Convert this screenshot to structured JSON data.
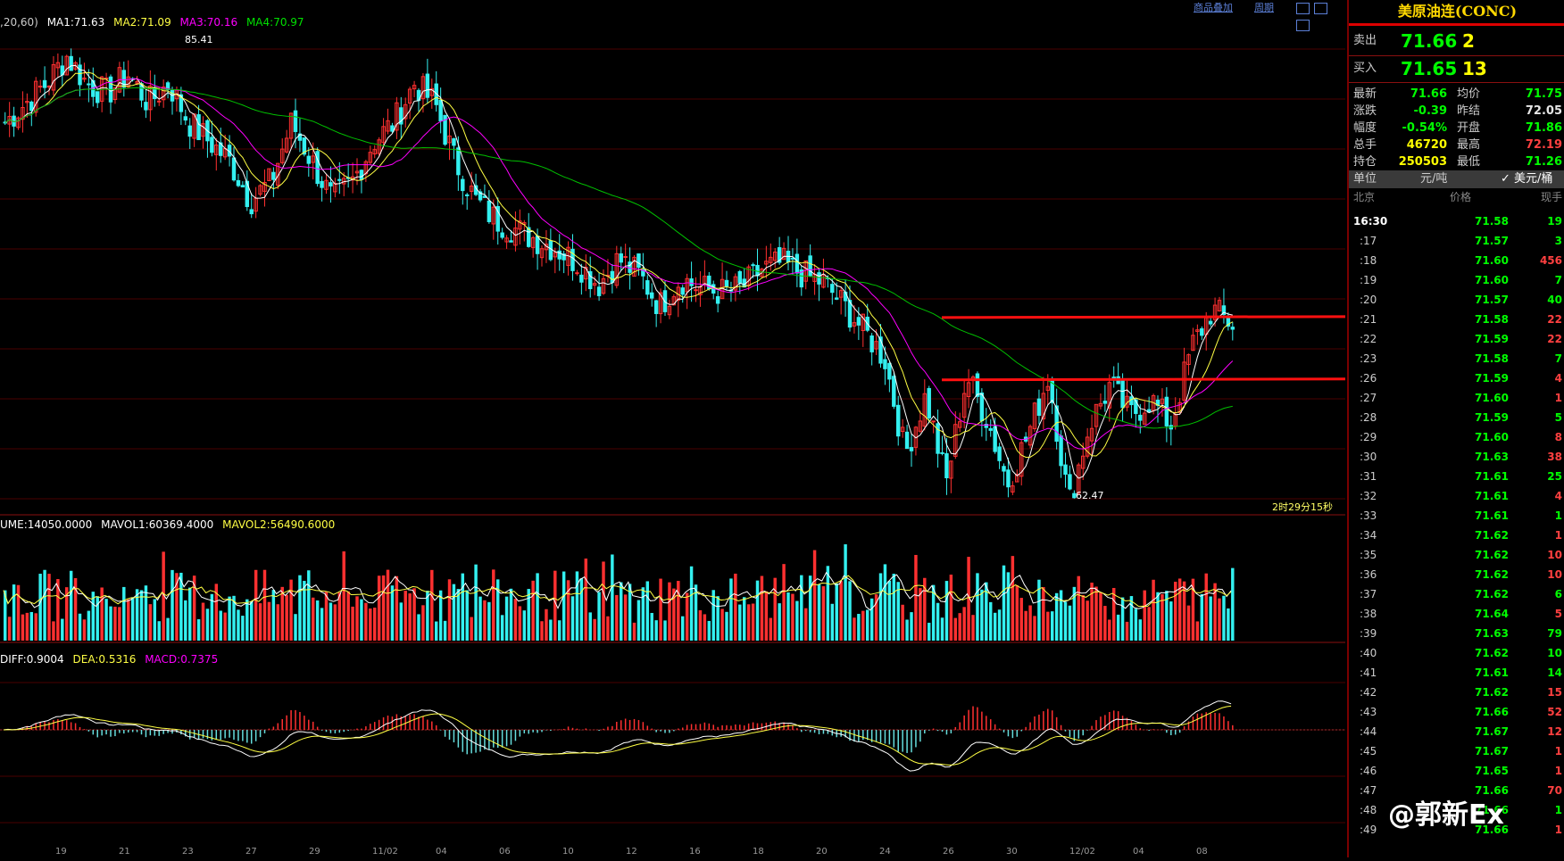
{
  "toolbar": {
    "overlay_label": "商品叠加",
    "period_label": "周期"
  },
  "main_legend": {
    "prefix": ",20,60)",
    "ma1": "MA1:71.63",
    "ma2": "MA2:71.09",
    "ma3": "MA3:70.16",
    "ma4": "MA4:70.97"
  },
  "volume_legend": {
    "volume": "UME:14050.0000",
    "mavol1": "MAVOL1:60369.4000",
    "mavol2": "MAVOL2:56490.6000"
  },
  "macd_legend": {
    "diff": "DIFF:0.9004",
    "dea": "DEA:0.5316",
    "macd": "MACD:0.7375"
  },
  "annotations": {
    "high_label": "85.41",
    "low_label": "62.47",
    "countdown": "2时29分15秒"
  },
  "x_axis_labels": [
    "19",
    "21",
    "23",
    "27",
    "29",
    "11/02",
    "04",
    "06",
    "10",
    "12",
    "16",
    "18",
    "20",
    "24",
    "26",
    "30",
    "12/02",
    "04",
    "08"
  ],
  "quote": {
    "title": "美原油连(CONC)",
    "sell_label": "卖出",
    "sell_price": "71.66",
    "sell_qty": "2",
    "buy_label": "买入",
    "buy_price": "71.65",
    "buy_qty": "13",
    "stats": [
      {
        "l1": "最新",
        "v1": "71.66",
        "c1": "green",
        "l2": "均价",
        "v2": "71.75",
        "c2": "green"
      },
      {
        "l1": "涨跌",
        "v1": "-0.39",
        "c1": "green",
        "l2": "昨结",
        "v2": "72.05",
        "c2": "white"
      },
      {
        "l1": "幅度",
        "v1": "-0.54%",
        "c1": "green",
        "l2": "开盘",
        "v2": "71.86",
        "c2": "green"
      },
      {
        "l1": "总手",
        "v1": "46720",
        "c1": "yellow",
        "l2": "最高",
        "v2": "72.19",
        "c2": "red"
      },
      {
        "l1": "持仓",
        "v1": "250503",
        "c1": "yellow",
        "l2": "最低",
        "v2": "71.26",
        "c2": "green"
      }
    ],
    "unit_label": "单位",
    "unit_a": "元/吨",
    "unit_b": "✓ 美元/桶",
    "col_time": "北京",
    "col_price": "价格",
    "col_qty": "现手"
  },
  "ticks": [
    {
      "t": "16:30",
      "p": "71.58",
      "v": "19",
      "c": "green"
    },
    {
      "t": ":17",
      "p": "71.57",
      "v": "3",
      "c": "green"
    },
    {
      "t": ":18",
      "p": "71.60",
      "v": "456",
      "c": "red"
    },
    {
      "t": ":19",
      "p": "71.60",
      "v": "7",
      "c": "green"
    },
    {
      "t": ":20",
      "p": "71.57",
      "v": "40",
      "c": "green"
    },
    {
      "t": ":21",
      "p": "71.58",
      "v": "22",
      "c": "red"
    },
    {
      "t": ":22",
      "p": "71.59",
      "v": "22",
      "c": "red"
    },
    {
      "t": ":23",
      "p": "71.58",
      "v": "7",
      "c": "green"
    },
    {
      "t": ":26",
      "p": "71.59",
      "v": "4",
      "c": "red"
    },
    {
      "t": ":27",
      "p": "71.60",
      "v": "1",
      "c": "red"
    },
    {
      "t": ":28",
      "p": "71.59",
      "v": "5",
      "c": "green"
    },
    {
      "t": ":29",
      "p": "71.60",
      "v": "8",
      "c": "red"
    },
    {
      "t": ":30",
      "p": "71.63",
      "v": "38",
      "c": "red"
    },
    {
      "t": ":31",
      "p": "71.61",
      "v": "25",
      "c": "green"
    },
    {
      "t": ":32",
      "p": "71.61",
      "v": "4",
      "c": "red"
    },
    {
      "t": ":33",
      "p": "71.61",
      "v": "1",
      "c": "green"
    },
    {
      "t": ":34",
      "p": "71.62",
      "v": "1",
      "c": "red"
    },
    {
      "t": ":35",
      "p": "71.62",
      "v": "10",
      "c": "red"
    },
    {
      "t": ":36",
      "p": "71.62",
      "v": "10",
      "c": "red"
    },
    {
      "t": ":37",
      "p": "71.62",
      "v": "6",
      "c": "green"
    },
    {
      "t": ":38",
      "p": "71.64",
      "v": "5",
      "c": "red"
    },
    {
      "t": ":39",
      "p": "71.63",
      "v": "79",
      "c": "green"
    },
    {
      "t": ":40",
      "p": "71.62",
      "v": "10",
      "c": "green"
    },
    {
      "t": ":41",
      "p": "71.61",
      "v": "14",
      "c": "green"
    },
    {
      "t": ":42",
      "p": "71.62",
      "v": "15",
      "c": "red"
    },
    {
      "t": ":43",
      "p": "71.66",
      "v": "52",
      "c": "red"
    },
    {
      "t": ":44",
      "p": "71.67",
      "v": "12",
      "c": "red"
    },
    {
      "t": ":45",
      "p": "71.67",
      "v": "1",
      "c": "red"
    },
    {
      "t": ":46",
      "p": "71.65",
      "v": "1",
      "c": "red"
    },
    {
      "t": ":47",
      "p": "71.66",
      "v": "70",
      "c": "red"
    },
    {
      "t": ":48",
      "p": "71.66",
      "v": "1",
      "c": "green"
    },
    {
      "t": ":49",
      "p": "71.66",
      "v": "1",
      "c": "red"
    }
  ],
  "watermark": "@郭新Ex",
  "chart_data": {
    "type": "candlestick",
    "price_range": [
      62.47,
      85.41
    ],
    "key_levels_price": [
      72.0,
      68.8
    ],
    "close_path": [
      82,
      83,
      84,
      85.41,
      84,
      83.5,
      84.5,
      83,
      84,
      82,
      81,
      80,
      78,
      79,
      82,
      80,
      78,
      79,
      81,
      82,
      84,
      83,
      80,
      78,
      77,
      76.5,
      76,
      75.5,
      74.8,
      73.7,
      75,
      74.2,
      72.6,
      74,
      73.5,
      73.3,
      73.5,
      74.5,
      74.8,
      74.2,
      73.8,
      72.6,
      71.3,
      69.9,
      65,
      68,
      63.5,
      69,
      66.8,
      63.5,
      66,
      69,
      62.47,
      66.5,
      68.5,
      67,
      67.8,
      66.5,
      70.5,
      72.4,
      71.66
    ],
    "colors": {
      "up": "#ff3030",
      "down": "#33f0f0",
      "ma1": "#ffffff",
      "ma2": "#ffff44",
      "ma3": "#ff00ff",
      "ma4": "#00c000"
    }
  }
}
